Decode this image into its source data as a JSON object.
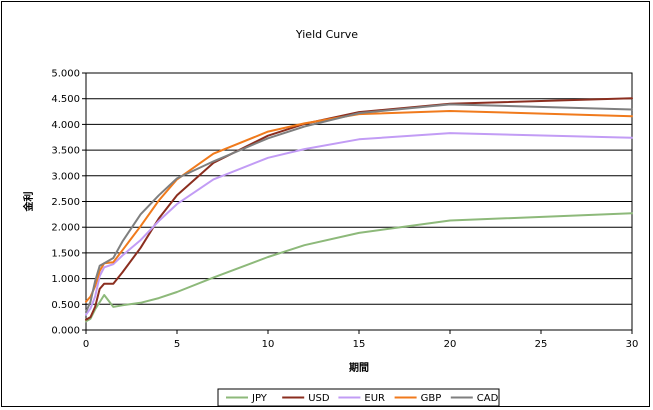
{
  "chart_data": {
    "type": "line",
    "title": "Yield Curve",
    "xlabel": "期間",
    "ylabel": "金利",
    "xlim": [
      0,
      30
    ],
    "ylim": [
      0,
      5
    ],
    "x_ticks": [
      0,
      5,
      10,
      15,
      20,
      25,
      30
    ],
    "y_ticks": [
      "0.000",
      "0.500",
      "1.000",
      "1.500",
      "2.000",
      "2.500",
      "3.000",
      "3.500",
      "4.000",
      "4.500",
      "5.000"
    ],
    "grid": "horizontal",
    "legend_position": "bottom",
    "series": [
      {
        "name": "JPY",
        "color": "#8db97a",
        "x": [
          0,
          0.25,
          0.5,
          1,
          1.5,
          2,
          3,
          4,
          5,
          7,
          10,
          12,
          15,
          20,
          30
        ],
        "y": [
          0.17,
          0.22,
          0.4,
          0.68,
          0.45,
          0.48,
          0.53,
          0.62,
          0.74,
          1.02,
          1.42,
          1.65,
          1.89,
          2.13,
          2.27
        ]
      },
      {
        "name": "USD",
        "color": "#8b2e1f",
        "x": [
          0,
          0.25,
          0.5,
          0.75,
          1,
          1.5,
          2,
          3,
          4,
          5,
          7,
          10,
          12,
          15,
          20,
          30
        ],
        "y": [
          0.2,
          0.25,
          0.45,
          0.8,
          0.9,
          0.9,
          1.12,
          1.6,
          2.17,
          2.62,
          3.25,
          3.78,
          4.01,
          4.24,
          4.4,
          4.51
        ]
      },
      {
        "name": "EUR",
        "color": "#c29cf5",
        "x": [
          0,
          0.25,
          0.5,
          0.75,
          1,
          1.5,
          2,
          3,
          4,
          5,
          7,
          10,
          12,
          15,
          20,
          30
        ],
        "y": [
          0.3,
          0.42,
          0.65,
          1.05,
          1.22,
          1.28,
          1.45,
          1.75,
          2.12,
          2.45,
          2.93,
          3.35,
          3.52,
          3.71,
          3.83,
          3.74
        ]
      },
      {
        "name": "GBP",
        "color": "#f07a1c",
        "x": [
          0,
          0.25,
          0.5,
          0.75,
          1,
          1.5,
          2,
          3,
          4,
          5,
          7,
          10,
          12,
          15,
          20,
          30
        ],
        "y": [
          0.55,
          0.65,
          0.85,
          1.15,
          1.3,
          1.32,
          1.55,
          2.02,
          2.52,
          2.93,
          3.43,
          3.86,
          4.02,
          4.2,
          4.26,
          4.16
        ]
      },
      {
        "name": "CAD",
        "color": "#7f7f7f",
        "x": [
          0,
          0.25,
          0.5,
          0.75,
          1,
          1.5,
          2,
          3,
          4,
          5,
          7,
          10,
          12,
          15,
          20,
          30
        ],
        "y": [
          0.35,
          0.55,
          0.95,
          1.25,
          1.3,
          1.4,
          1.72,
          2.25,
          2.62,
          2.95,
          3.28,
          3.73,
          3.96,
          4.22,
          4.39,
          4.29
        ]
      }
    ]
  }
}
